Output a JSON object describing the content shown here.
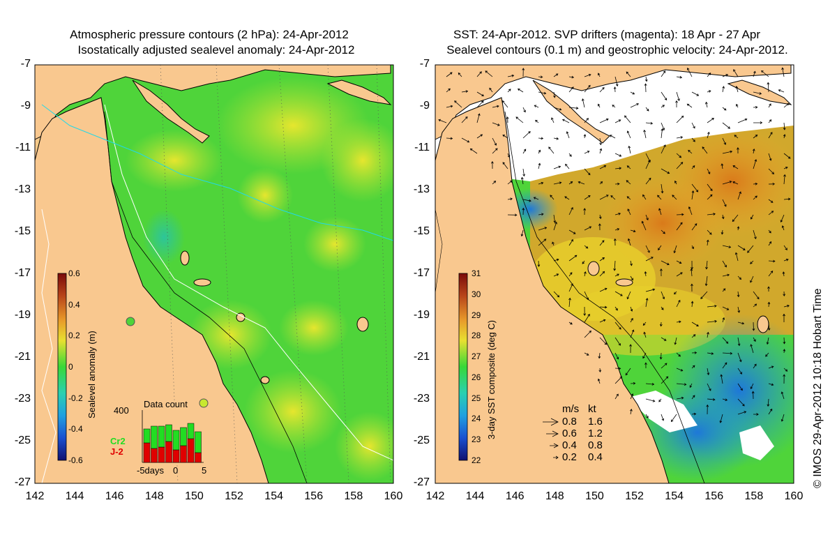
{
  "left_panel": {
    "title_line1": "Atmospheric pressure contours (2 hPa): 24-Apr-2012",
    "title_line2": "Isostatically adjusted sealevel anomaly: 24-Apr-2012",
    "colorbar": {
      "label": "Sealevel anomaly (m)",
      "ticks": [
        "0.6",
        "0.4",
        "0.2",
        "0",
        "-0.2",
        "-0.4",
        "-0.6"
      ]
    },
    "inset": {
      "title": "Data count",
      "y_tick": "400",
      "x_ticks": [
        "-5days",
        "0",
        "5"
      ],
      "legend": [
        {
          "name": "Cr2",
          "color": "#22dd22"
        },
        {
          "name": "J-2",
          "color": "#e00000"
        }
      ]
    }
  },
  "right_panel": {
    "title_line1": "SST: 24-Apr-2012. SVP drifters (magenta): 18 Apr - 27 Apr",
    "title_line2": "Sealevel contours (0.1 m) and geostrophic velocity: 24-Apr-2012.",
    "colorbar": {
      "label": "3-day SST composite (deg C)",
      "ticks": [
        "31",
        "30",
        "29",
        "28",
        "27",
        "26",
        "25",
        "24",
        "23",
        "22"
      ]
    },
    "velocity_legend": {
      "header_ms": "m/s",
      "header_kt": "kt",
      "rows": [
        {
          "ms": "0.8",
          "kt": "1.6"
        },
        {
          "ms": "0.6",
          "kt": "1.2"
        },
        {
          "ms": "0.4",
          "kt": "0.8"
        },
        {
          "ms": "0.2",
          "kt": "0.4"
        }
      ]
    }
  },
  "axes": {
    "lat_ticks": [
      "-7",
      "-9",
      "-11",
      "-13",
      "-15",
      "-17",
      "-19",
      "-21",
      "-23",
      "-25",
      "-27"
    ],
    "lon_ticks": [
      "142",
      "144",
      "146",
      "148",
      "150",
      "152",
      "154",
      "156",
      "158",
      "160"
    ]
  },
  "credit": "© IMOS 29-Apr-2012 10:18 Hobart Time",
  "colors": {
    "land": "#f9c88f",
    "ocean_green": "#4fd43a",
    "ocean_yellow": "#c8e830",
    "sst_orange": "#e8a02a",
    "sst_blue": "#2a8cdf"
  }
}
